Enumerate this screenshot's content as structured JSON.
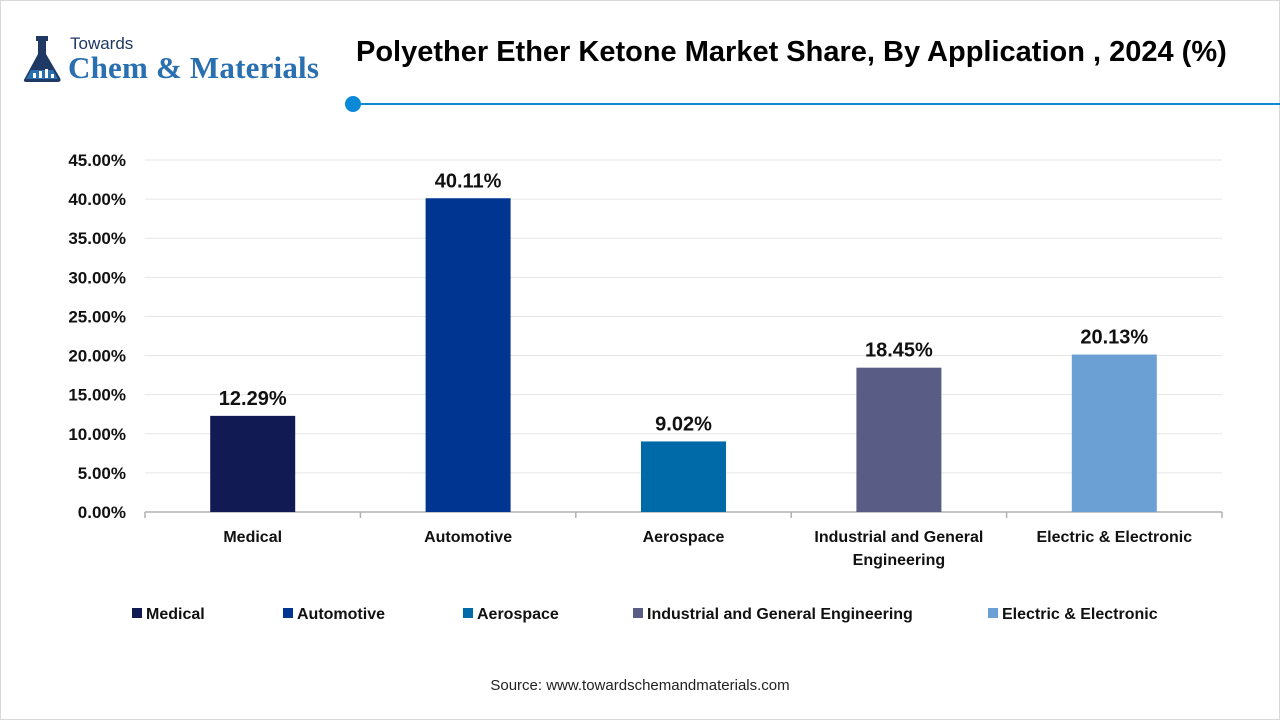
{
  "header": {
    "logo_small": "Towards",
    "logo_big": "Chem & Materials",
    "title": "Polyether Ether Ketone Market Share, By  Application , 2024 (%)"
  },
  "chart_data": {
    "type": "bar",
    "title": "Polyether Ether Ketone Market Share, By  Application , 2024 (%)",
    "xlabel": "",
    "ylabel": "",
    "ylim": [
      0,
      45
    ],
    "ytick_step": 5,
    "yticks": [
      "0.00%",
      "5.00%",
      "10.00%",
      "15.00%",
      "20.00%",
      "25.00%",
      "30.00%",
      "35.00%",
      "40.00%",
      "45.00%"
    ],
    "grid": true,
    "legend_position": "bottom",
    "categories": [
      "Medical",
      "Automotive",
      "Aerospace",
      "Industrial and General Engineering",
      "Electric & Electronic"
    ],
    "values": [
      12.29,
      40.11,
      9.02,
      18.45,
      20.13
    ],
    "data_labels": [
      "12.29%",
      "40.11%",
      "9.02%",
      "18.45%",
      "20.13%"
    ],
    "colors": [
      "#121a54",
      "#003591",
      "#006aa8",
      "#595d86",
      "#6aa0d4"
    ]
  },
  "source": "Source: www.towardschemandmaterials.com",
  "accent_color": "#0a8ad6"
}
